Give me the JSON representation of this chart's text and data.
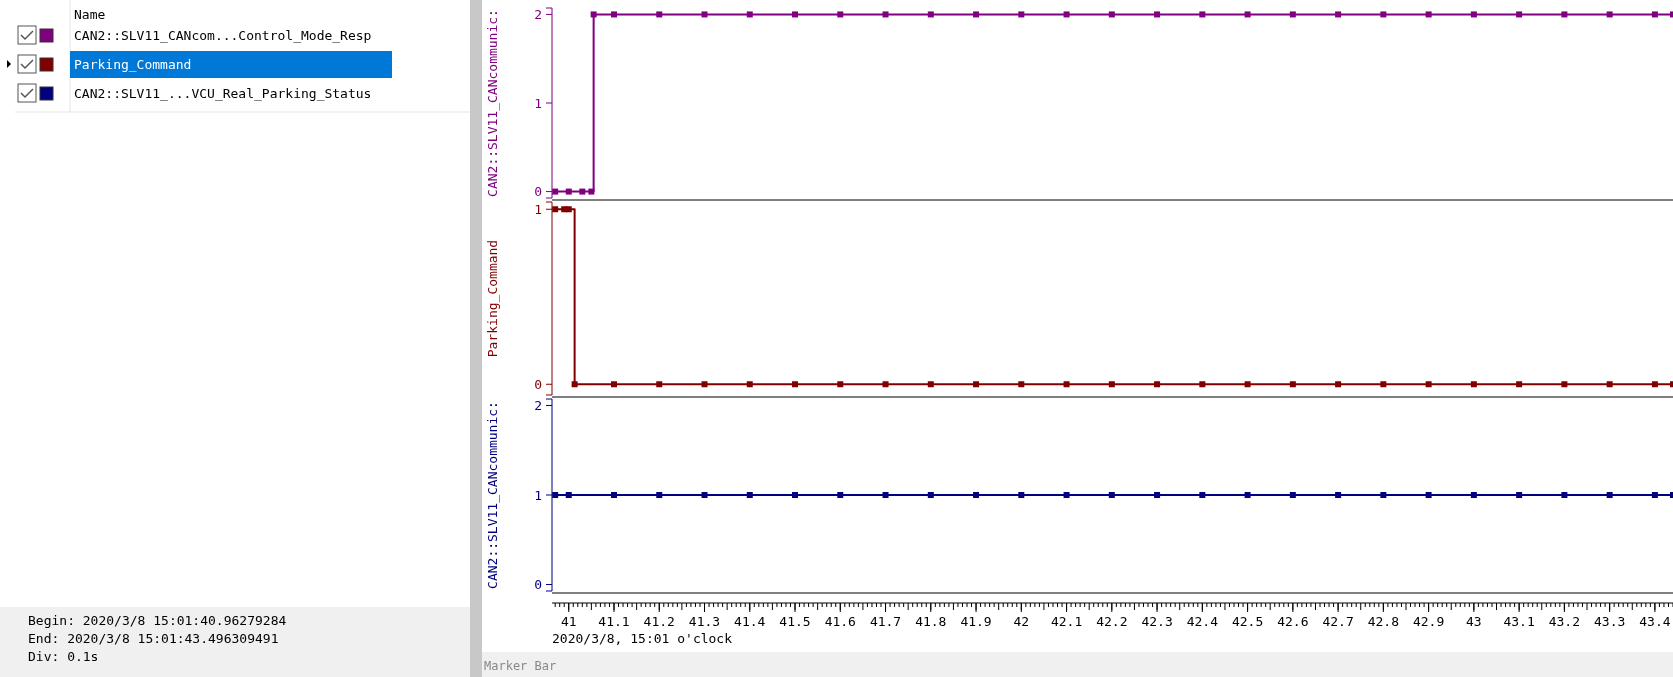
{
  "chart_data": [
    {
      "type": "step",
      "ylabel": "CAN2::SLV11_CANcommunic:",
      "legend": "left",
      "legend_title": "Name",
      "marker": "square",
      "tick_labels": "y",
      "xlim": [
        40.963,
        43.44
      ],
      "ylim": [
        -0.05,
        2.05
      ],
      "yticks": [
        0,
        1,
        2
      ],
      "annotations": [
        "Begin: 2020/3/8 15:01:40.96279284",
        "End: 2020/3/8 15:01:43.496309491",
        "Div: 0.1s",
        "Marker Bar"
      ],
      "series": [
        {
          "name": "CAN2::SLV11_CANcom...Control_Mode_Resp",
          "color": "#800080",
          "x": [
            40.97,
            41.0,
            41.03,
            41.05,
            41.055,
            41.1,
            41.2,
            41.3,
            41.4,
            41.5,
            41.6,
            41.7,
            41.8,
            41.9,
            42,
            42.1,
            42.2,
            42.3,
            42.4,
            42.5,
            42.6,
            42.7,
            42.8,
            42.9,
            43,
            43.1,
            43.2,
            43.3,
            43.4,
            43.44
          ],
          "values": [
            0,
            0,
            0,
            0,
            2,
            2,
            2,
            2,
            2,
            2,
            2,
            2,
            2,
            2,
            2,
            2,
            2,
            2,
            2,
            2,
            2,
            2,
            2,
            2,
            2,
            2,
            2,
            2,
            2,
            2
          ]
        }
      ]
    },
    {
      "type": "step",
      "ylabel": "Parking_Command",
      "legend": "left",
      "marker": "square",
      "tick_labels": "y",
      "xlim": [
        40.963,
        43.44
      ],
      "ylim": [
        -0.05,
        1.03
      ],
      "yticks": [
        0,
        1
      ],
      "series": [
        {
          "name": "Parking_Command",
          "color": "#800000",
          "x": [
            40.97,
            40.99,
            41.0,
            41.013,
            41.1,
            41.2,
            41.3,
            41.4,
            41.5,
            41.6,
            41.7,
            41.8,
            41.9,
            42,
            42.1,
            42.2,
            42.3,
            42.4,
            42.5,
            42.6,
            42.7,
            42.8,
            42.9,
            43,
            43.1,
            43.2,
            43.3,
            43.4,
            43.44
          ],
          "values": [
            1,
            1,
            1,
            0,
            0,
            0,
            0,
            0,
            0,
            0,
            0,
            0,
            0,
            0,
            0,
            0,
            0,
            0,
            0,
            0,
            0,
            0,
            0,
            0,
            0,
            0,
            0,
            0,
            0
          ]
        }
      ]
    },
    {
      "type": "step",
      "ylabel": "CAN2::SLV11_CANcommunic:",
      "xlabel": "2020/3/8, 15:01 o'clock",
      "legend": "left",
      "marker": "square",
      "xlim": [
        40.963,
        43.44
      ],
      "xticks": [
        41,
        41.1,
        41.2,
        41.3,
        41.4,
        41.5,
        41.6,
        41.7,
        41.8,
        41.9,
        42,
        42.1,
        42.2,
        42.3,
        42.4,
        42.5,
        42.6,
        42.7,
        42.8,
        42.9,
        43,
        43.1,
        43.2,
        43.3,
        43.4
      ],
      "ylim": [
        -0.05,
        2.05
      ],
      "yticks": [
        0,
        1,
        2
      ],
      "series": [
        {
          "name": "CAN2::SLV11_...VCU_Real_Parking_Status",
          "color": "#000080",
          "x": [
            40.97,
            41.0,
            41.1,
            41.2,
            41.3,
            41.4,
            41.5,
            41.6,
            41.7,
            41.8,
            41.9,
            42,
            42.1,
            42.2,
            42.3,
            42.4,
            42.5,
            42.6,
            42.7,
            42.8,
            42.9,
            43,
            43.1,
            43.2,
            43.3,
            43.4,
            43.44
          ],
          "values": [
            1,
            1,
            1,
            1,
            1,
            1,
            1,
            1,
            1,
            1,
            1,
            1,
            1,
            1,
            1,
            1,
            1,
            1,
            1,
            1,
            1,
            1,
            1,
            1,
            1,
            1,
            1
          ]
        }
      ]
    }
  ]
}
